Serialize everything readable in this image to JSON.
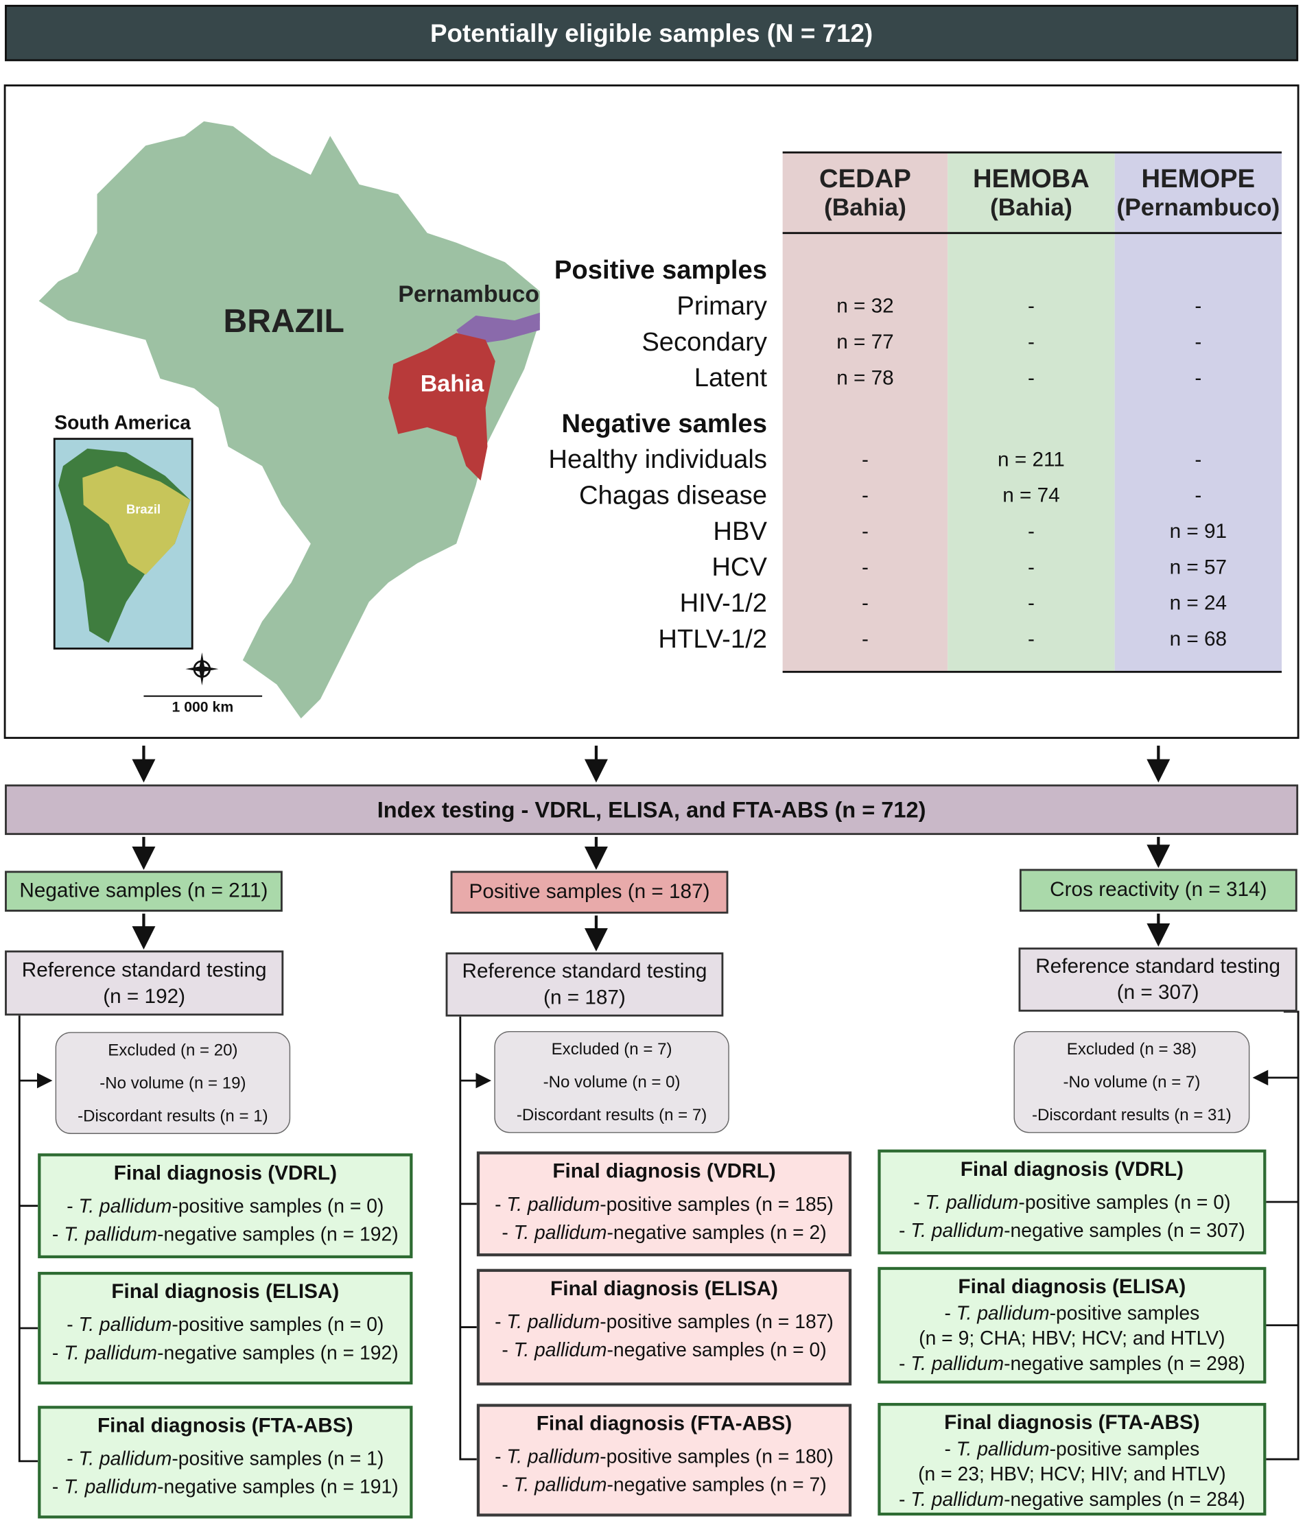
{
  "header": {
    "title": "Potentially eligible samples (N = 712)"
  },
  "map": {
    "country": "BRAZIL",
    "states": [
      "Pernambuco",
      "Bahia"
    ],
    "inset_title": "South America",
    "inset_label": "Brazil",
    "scale": "1 000 km"
  },
  "table": {
    "columns": [
      {
        "name": "CEDAP",
        "region": "(Bahia)"
      },
      {
        "name": "HEMOBA",
        "region": "(Bahia)"
      },
      {
        "name": "HEMOPE",
        "region": "(Pernambuco)"
      }
    ],
    "sections": [
      {
        "title": "Positive samples",
        "rows": [
          {
            "label": "Primary",
            "cells": [
              "n = 32",
              "-",
              "-"
            ]
          },
          {
            "label": "Secondary",
            "cells": [
              "n = 77",
              "-",
              "-"
            ]
          },
          {
            "label": "Latent",
            "cells": [
              "n = 78",
              "-",
              "-"
            ]
          }
        ]
      },
      {
        "title": "Negative samles",
        "rows": [
          {
            "label": "Healthy individuals",
            "cells": [
              "-",
              "n = 211",
              "-"
            ]
          },
          {
            "label": "Chagas disease",
            "cells": [
              "-",
              "n = 74",
              "-"
            ]
          },
          {
            "label": "HBV",
            "cells": [
              "-",
              "-",
              "n = 91"
            ]
          },
          {
            "label": "HCV",
            "cells": [
              "-",
              "-",
              "n = 57"
            ]
          },
          {
            "label": "HIV-1/2",
            "cells": [
              "-",
              "-",
              "n = 24"
            ]
          },
          {
            "label": "HTLV-1/2",
            "cells": [
              "-",
              "-",
              "n = 68"
            ]
          }
        ]
      }
    ]
  },
  "index": {
    "title": "Index testing - VDRL, ELISA, and FTA-ABS (n = 712)"
  },
  "branches": [
    {
      "group": "Negative samples (n = 211)",
      "reference": [
        "Reference standard testing",
        "(n = 192)"
      ],
      "excluded": [
        "Excluded (n = 20)",
        "-No volume (n = 19)",
        "-Discordant results (n = 1)"
      ],
      "finals": [
        {
          "title": "Final diagnosis (VDRL)",
          "lines": [
            {
              "pre": "- ",
              "em": "T. pallidum",
              "post": "-positive samples (n = 0)"
            },
            {
              "pre": "- ",
              "em": "T. pallidum",
              "post": "-negative samples (n = 192)"
            }
          ]
        },
        {
          "title": "Final diagnosis (ELISA)",
          "lines": [
            {
              "pre": "- ",
              "em": "T. pallidum",
              "post": "-positive samples (n = 0)"
            },
            {
              "pre": "- ",
              "em": "T. pallidum",
              "post": "-negative samples (n = 192)"
            }
          ]
        },
        {
          "title": "Final diagnosis (FTA-ABS)",
          "lines": [
            {
              "pre": "- ",
              "em": "T. pallidum",
              "post": "-positive samples (n = 1)"
            },
            {
              "pre": "- ",
              "em": "T. pallidum",
              "post": "-negative samples (n = 191)"
            }
          ]
        }
      ]
    },
    {
      "group": "Positive samples (n = 187)",
      "reference": [
        "Reference standard testing",
        "(n = 187)"
      ],
      "excluded": [
        "Excluded (n = 7)",
        "-No volume (n = 0)",
        "-Discordant results (n = 7)"
      ],
      "finals": [
        {
          "title": "Final diagnosis (VDRL)",
          "lines": [
            {
              "pre": "- ",
              "em": "T. pallidum",
              "post": "-positive samples (n = 185)"
            },
            {
              "pre": "- ",
              "em": "T. pallidum",
              "post": "-negative samples (n = 2)"
            }
          ]
        },
        {
          "title": "Final diagnosis (ELISA)",
          "lines": [
            {
              "pre": "- ",
              "em": "T. pallidum",
              "post": "-positive samples (n = 187)"
            },
            {
              "pre": "- ",
              "em": "T. pallidum",
              "post": "-negative samples (n = 0)"
            }
          ]
        },
        {
          "title": "Final diagnosis (FTA-ABS)",
          "lines": [
            {
              "pre": "- ",
              "em": "T. pallidum",
              "post": "-positive samples (n = 180)"
            },
            {
              "pre": "- ",
              "em": "T. pallidum",
              "post": "-negative samples (n = 7)"
            }
          ]
        }
      ]
    },
    {
      "group": "Cros reactivity (n = 314)",
      "reference": [
        "Reference standard testing",
        "(n = 307)"
      ],
      "excluded": [
        "Excluded (n = 38)",
        "-No volume (n = 7)",
        "-Discordant results (n = 31)"
      ],
      "finals": [
        {
          "title": "Final diagnosis (VDRL)",
          "lines": [
            {
              "pre": "- ",
              "em": "T. pallidum",
              "post": "-positive samples (n = 0)"
            },
            {
              "pre": "- ",
              "em": "T. pallidum",
              "post": "-negative samples (n = 307)"
            }
          ]
        },
        {
          "title": "Final diagnosis (ELISA)",
          "lines": [
            {
              "pre": "- ",
              "em": "T. pallidum",
              "post": "-positive samples"
            },
            {
              "text": "(n = 9; CHA; HBV; HCV; and HTLV)"
            },
            {
              "pre": "- ",
              "em": "T. pallidum",
              "post": "-negative samples (n = 298)"
            }
          ]
        },
        {
          "title": "Final diagnosis (FTA-ABS)",
          "lines": [
            {
              "pre": "- ",
              "em": "T. pallidum",
              "post": "-positive samples"
            },
            {
              "text": "(n = 23; HBV; HCV; HIV; and HTLV)"
            },
            {
              "pre": "- ",
              "em": "T. pallidum",
              "post": "-negative samples (n = 284)"
            }
          ]
        }
      ]
    }
  ]
}
